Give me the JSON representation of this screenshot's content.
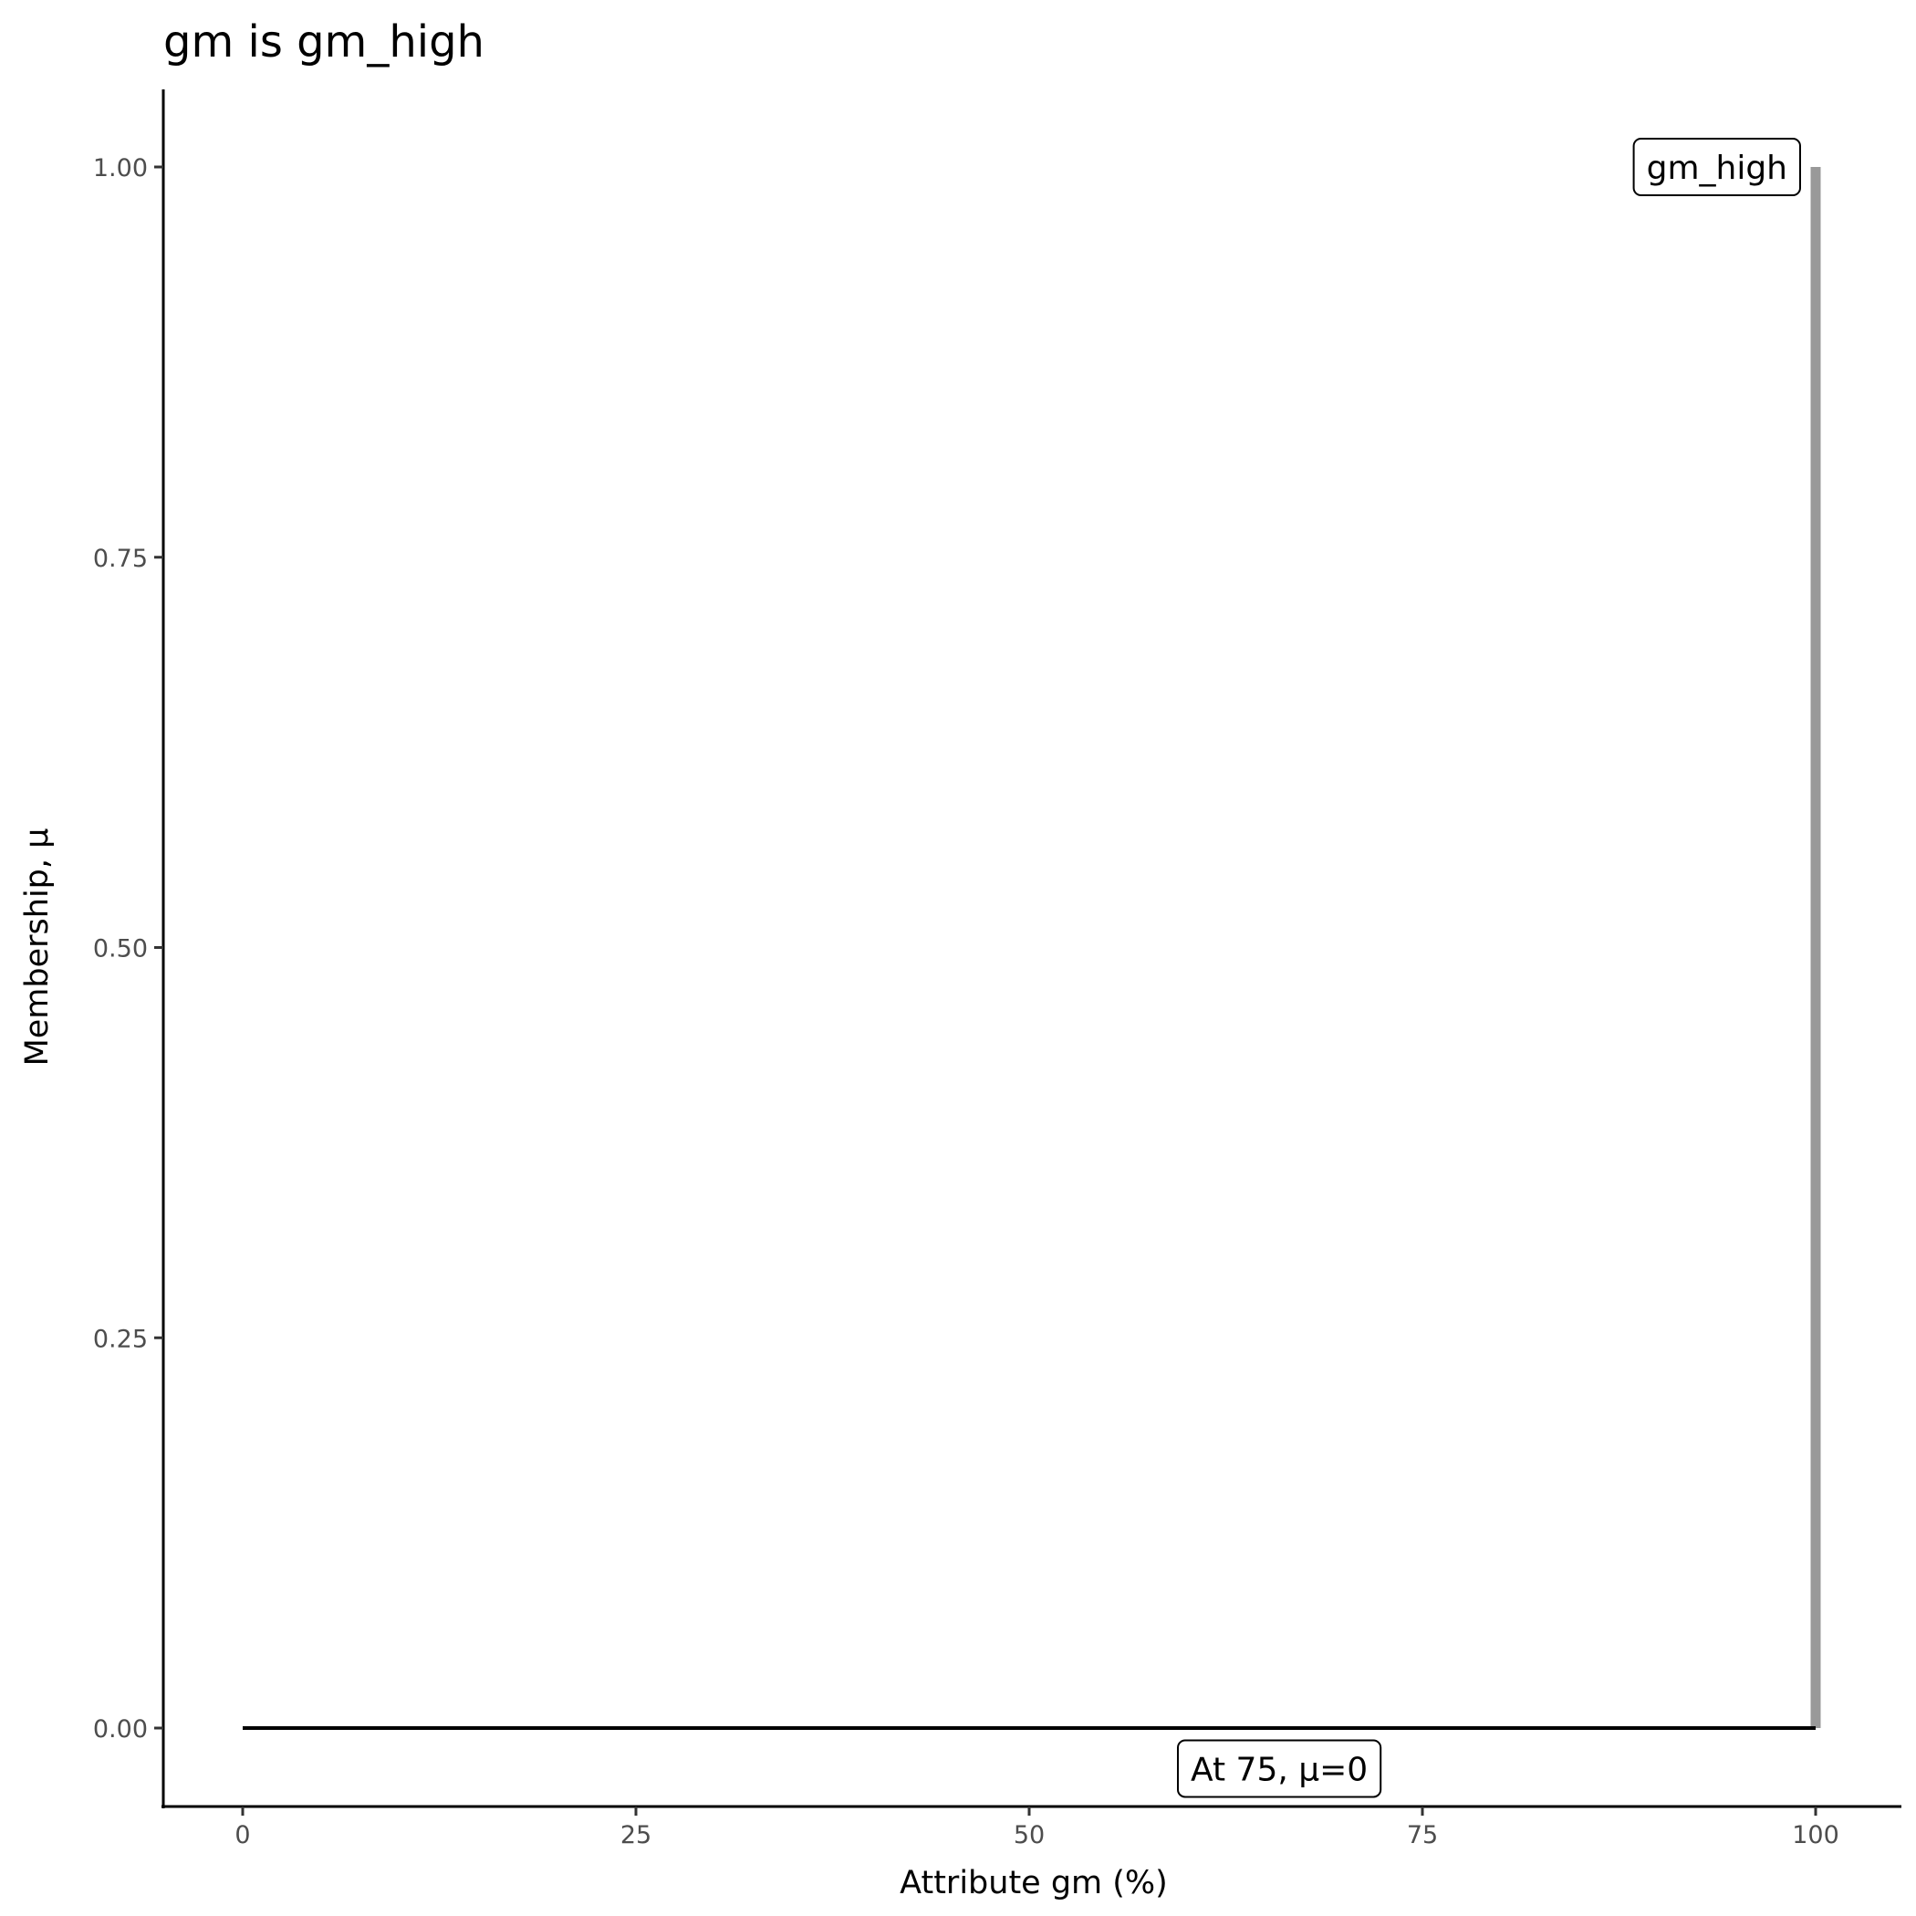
{
  "chart_data": {
    "type": "line",
    "title": "gm is gm_high",
    "xlabel": "Attribute gm (%)",
    "ylabel": "Membership, μ",
    "xlim": [
      -5,
      105
    ],
    "ylim": [
      -0.05,
      1.05
    ],
    "x_ticks": [
      0,
      25,
      50,
      75,
      100
    ],
    "x_tick_labels": [
      "0",
      "25",
      "50",
      "75",
      "100"
    ],
    "y_ticks": [
      0,
      0.25,
      0.5,
      0.75,
      1
    ],
    "y_tick_labels": [
      "0.00",
      "0.25",
      "0.50",
      "0.75",
      "1.00"
    ],
    "grid": false,
    "series": [
      {
        "color": "#000000",
        "x": [
          0,
          100
        ],
        "y": [
          0,
          0
        ]
      },
      {
        "color": "#999999",
        "x": [
          100,
          100
        ],
        "y": [
          0,
          1
        ]
      }
    ],
    "annotations": [
      {
        "text": "gm_high",
        "x": 100,
        "y": 1,
        "anchor": "right"
      },
      {
        "text": "At 75, μ=0",
        "x": 65.9,
        "y": -0.026,
        "anchor": "center"
      }
    ]
  }
}
